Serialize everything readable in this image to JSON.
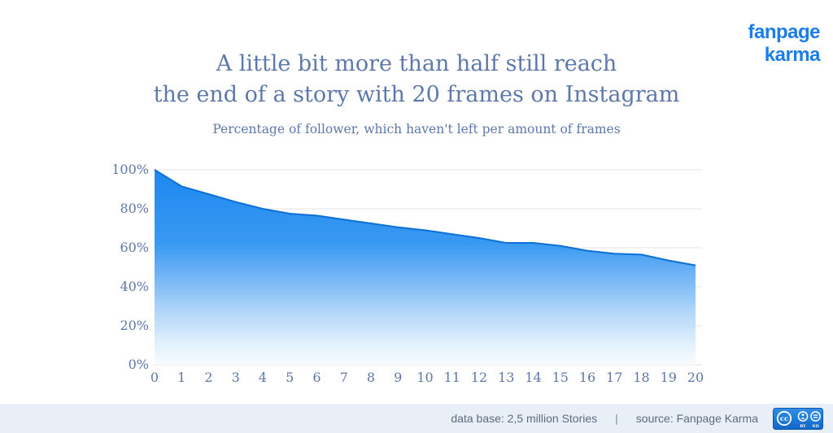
{
  "brand": {
    "logo_text": "fanpage karma",
    "logo_color": "#1a7de8"
  },
  "chart_data": {
    "type": "area",
    "title_lines": [
      "A little bit more than half still reach",
      "the end of a story with 20 frames on Instagram"
    ],
    "subtitle": "Percentage of follower, which haven't left per amount of frames",
    "x": [
      0,
      1,
      2,
      3,
      4,
      5,
      6,
      7,
      8,
      9,
      10,
      11,
      12,
      13,
      14,
      15,
      16,
      17,
      18,
      19,
      20
    ],
    "values": [
      100,
      91.5,
      87.5,
      83.5,
      80,
      77.5,
      76.5,
      74.5,
      72.5,
      70.5,
      69,
      67,
      65,
      62.5,
      62.5,
      61,
      58.5,
      57,
      56.5,
      53.5,
      51
    ],
    "xtick_labels": [
      "0",
      "1",
      "2",
      "3",
      "4",
      "5",
      "6",
      "7",
      "8",
      "9",
      "10",
      "11",
      "12",
      "13",
      "14",
      "15",
      "16",
      "17",
      "18",
      "19",
      "20"
    ],
    "ytick_values": [
      0,
      20,
      40,
      60,
      80,
      100
    ],
    "ytick_labels": [
      "0%",
      "20%",
      "40%",
      "60%",
      "80%",
      "100%"
    ],
    "ylim": [
      0,
      100
    ],
    "xlabel": "",
    "ylabel": "",
    "grid": true,
    "legend": "none",
    "colors": {
      "stroke": "#0c70d6",
      "fill_top": "#1181ef",
      "fill_mid": "#2e94f1",
      "fill_soft": "#6db1f5",
      "fill_light": "#aad3f8",
      "fill_faint": "#dceefc",
      "fill_bottom": "#f9fcff",
      "grid": "#e3e3e3",
      "axis_text": "#5d77a8"
    }
  },
  "header": {
    "title_color": "#5d78ab"
  },
  "footer": {
    "database_label": "data base: 2,5 million Stories",
    "separator": "|",
    "source_label": "source: Fanpage Karma",
    "license": {
      "name": "CC BY-ND",
      "cc_label": "cc",
      "by_label": "BY",
      "nd_label": "ND",
      "badge_color_top": "#2f8fe5",
      "badge_color_bottom": "#1166c8"
    }
  }
}
